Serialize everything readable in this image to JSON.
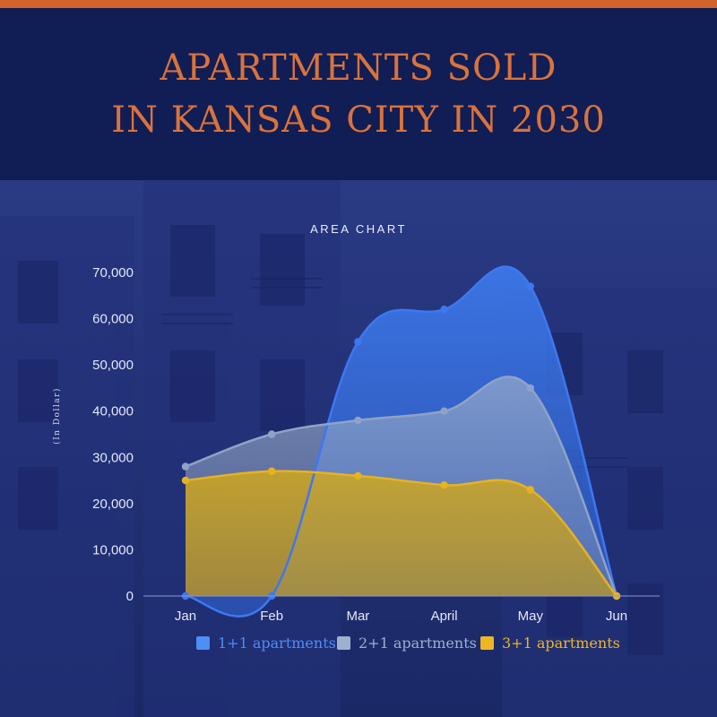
{
  "poster": {
    "title_line1": "APARTMENTS SOLD",
    "title_line2": "IN KANSAS CITY IN 2030"
  },
  "colors": {
    "accent_strip": "#d3632c",
    "header_bg": "#111d55",
    "title": "#d9733c"
  },
  "chart_data": {
    "type": "area",
    "title": "AREA CHART",
    "ylabel": "(In Dollar)",
    "xlabel": "",
    "categories": [
      "Jan",
      "Feb",
      "Mar",
      "April",
      "May",
      "Jun"
    ],
    "ylim": [
      0,
      70000
    ],
    "yticks": [
      0,
      10000,
      20000,
      30000,
      40000,
      50000,
      60000,
      70000
    ],
    "ytick_labels": [
      "0",
      "10,000",
      "20,000",
      "30,000",
      "40,000",
      "50,000",
      "60,000",
      "70,000"
    ],
    "series": [
      {
        "name": "1+1 apartments",
        "values": [
          0,
          0,
          55000,
          62000,
          67000,
          0
        ],
        "color": "#3d78f0"
      },
      {
        "name": "2+1 apartments",
        "values": [
          28000,
          35000,
          38000,
          40000,
          45000,
          0
        ],
        "color": "#8fa3c6"
      },
      {
        "name": "3+1 apartments",
        "values": [
          25000,
          27000,
          26000,
          24000,
          23000,
          0
        ],
        "color": "#e7b21e"
      }
    ],
    "legend": "bottom",
    "grid": false
  }
}
